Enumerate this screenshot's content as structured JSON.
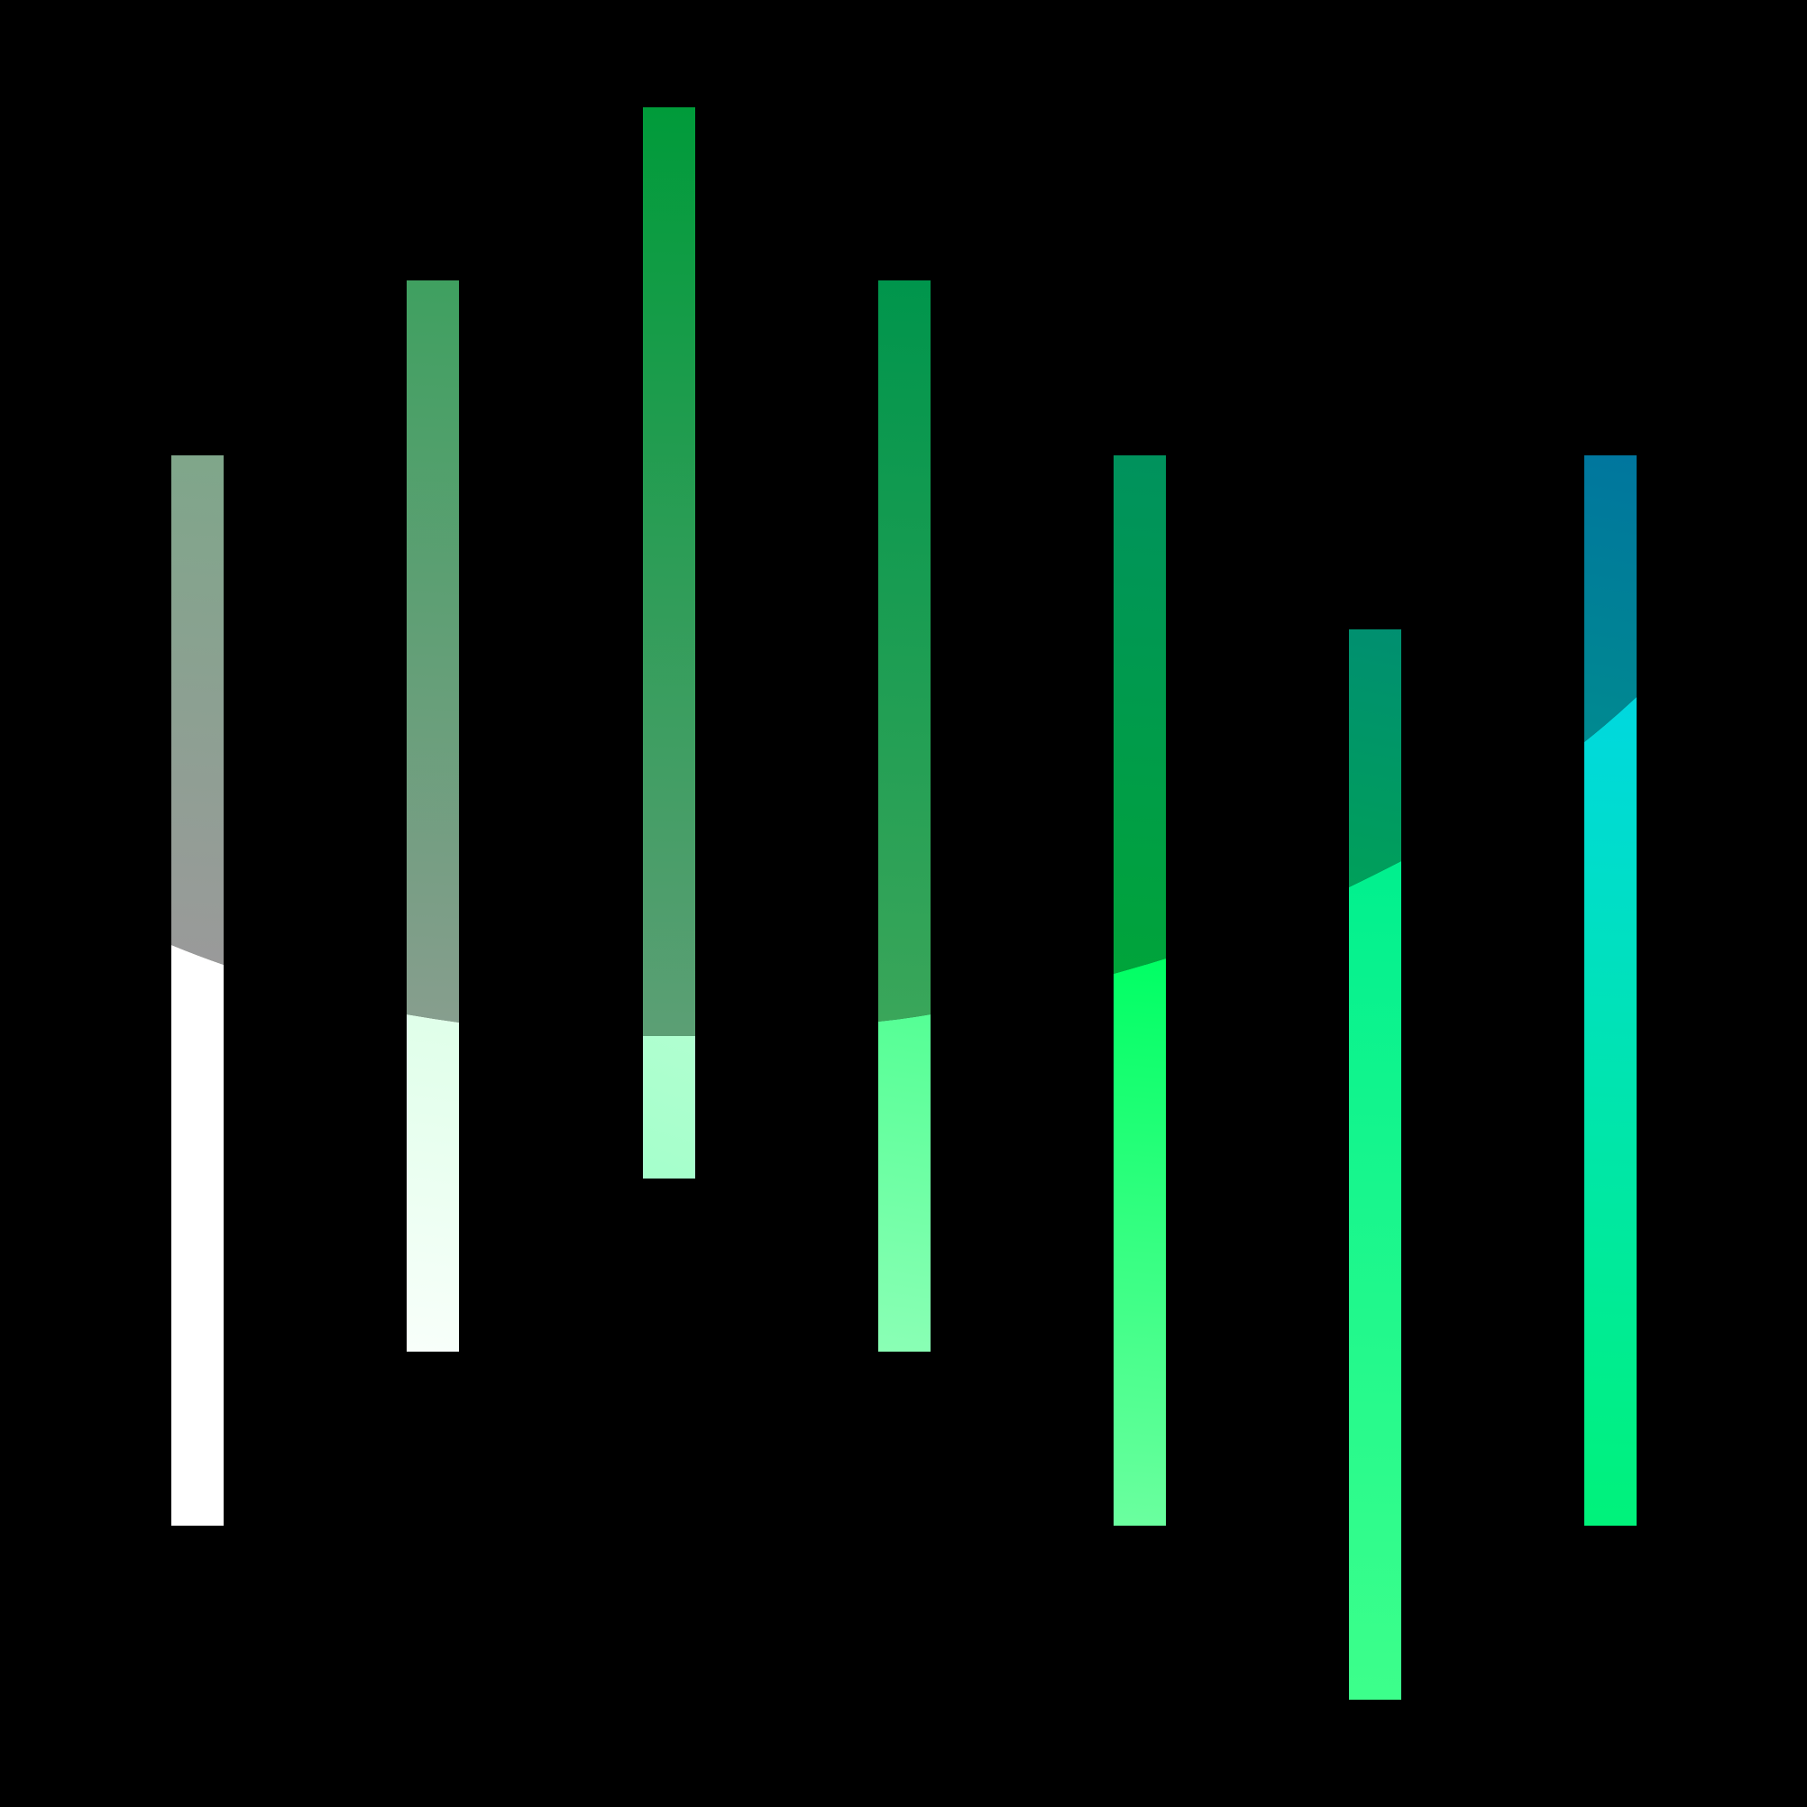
{
  "background": "#000000",
  "graphic": {
    "description_name": "vertical-bars-logo",
    "bars": [
      {
        "id": "bar-1",
        "upper_colors": [
          "#7fa68a",
          "#9a9a9a"
        ],
        "lower_colors": [
          "#ffffff",
          "#ffffff"
        ]
      },
      {
        "id": "bar-2",
        "upper_colors": [
          "#3fa060",
          "#879e8e"
        ],
        "lower_colors": [
          "#dfffe9",
          "#f8fffa"
        ]
      },
      {
        "id": "bar-3",
        "upper_colors": [
          "#009b3a",
          "#5c9f75"
        ],
        "lower_colors": [
          "#b0ffd0",
          "#a5ffcb"
        ]
      },
      {
        "id": "bar-4",
        "upper_colors": [
          "#00954c",
          "#3aa65a"
        ],
        "lower_colors": [
          "#55ff95",
          "#8affb5"
        ]
      },
      {
        "id": "bar-5",
        "upper_colors": [
          "#00925d",
          "#00a43a"
        ],
        "lower_colors": [
          "#00ff64",
          "#6bff9f"
        ]
      },
      {
        "id": "bar-6",
        "upper_colors": [
          "#008f70",
          "#00a05a"
        ],
        "lower_colors": [
          "#00f08e",
          "#3dff8b"
        ]
      },
      {
        "id": "bar-7",
        "upper_colors": [
          "#00769e",
          "#008a90"
        ],
        "lower_colors": [
          "#00d8df",
          "#00f27a"
        ]
      }
    ]
  }
}
